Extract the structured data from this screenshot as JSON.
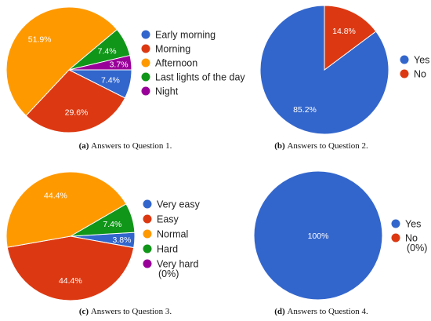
{
  "chart_data": [
    {
      "type": "pie",
      "caption_letter": "(a)",
      "caption_text": "Answers to Question 1.",
      "slices": [
        {
          "label": "Early morning",
          "value": 7.4,
          "color": "#3366cc",
          "show_label": true,
          "display": "7.4%"
        },
        {
          "label": "Morning",
          "value": 29.6,
          "color": "#dc3912",
          "show_label": true,
          "display": "29.6%"
        },
        {
          "label": "Afternoon",
          "value": 51.9,
          "color": "#ff9900",
          "show_label": true,
          "display": "51.9%"
        },
        {
          "label": "Last lights of the day",
          "value": 7.4,
          "color": "#109618",
          "show_label": true,
          "display": "7.4%"
        },
        {
          "label": "Night",
          "value": 3.7,
          "color": "#990099",
          "show_label": true,
          "display": "3.7%"
        }
      ]
    },
    {
      "type": "pie",
      "caption_letter": "(b)",
      "caption_text": "Answers to Question 2.",
      "slices": [
        {
          "label": "Yes",
          "value": 85.2,
          "color": "#3366cc",
          "show_label": true,
          "display": "85.2%"
        },
        {
          "label": "No",
          "value": 14.8,
          "color": "#dc3912",
          "show_label": true,
          "display": "14.8%"
        }
      ]
    },
    {
      "type": "pie",
      "caption_letter": "(c)",
      "caption_text": "Answers to Question 3.",
      "slices": [
        {
          "label": "Very easy",
          "value": 3.8,
          "color": "#3366cc",
          "show_label": true,
          "display": "3.8%"
        },
        {
          "label": "Easy",
          "value": 44.4,
          "color": "#dc3912",
          "show_label": true,
          "display": "44.4%"
        },
        {
          "label": "Normal",
          "value": 44.4,
          "color": "#ff9900",
          "show_label": true,
          "display": "44.4%"
        },
        {
          "label": "Hard",
          "value": 7.4,
          "color": "#109618",
          "show_label": true,
          "display": "7.4%"
        },
        {
          "label": "Very hard",
          "value": 0,
          "color": "#990099",
          "show_label": false,
          "display": "",
          "legend_note": "(0%)"
        }
      ]
    },
    {
      "type": "pie",
      "caption_letter": "(d)",
      "caption_text": "Answers to Question 4.",
      "slices": [
        {
          "label": "Yes",
          "value": 100,
          "color": "#3366cc",
          "show_label": true,
          "display": "100%"
        },
        {
          "label": "No",
          "value": 0,
          "color": "#dc3912",
          "show_label": false,
          "display": "",
          "legend_note": "(0%)"
        }
      ]
    }
  ]
}
